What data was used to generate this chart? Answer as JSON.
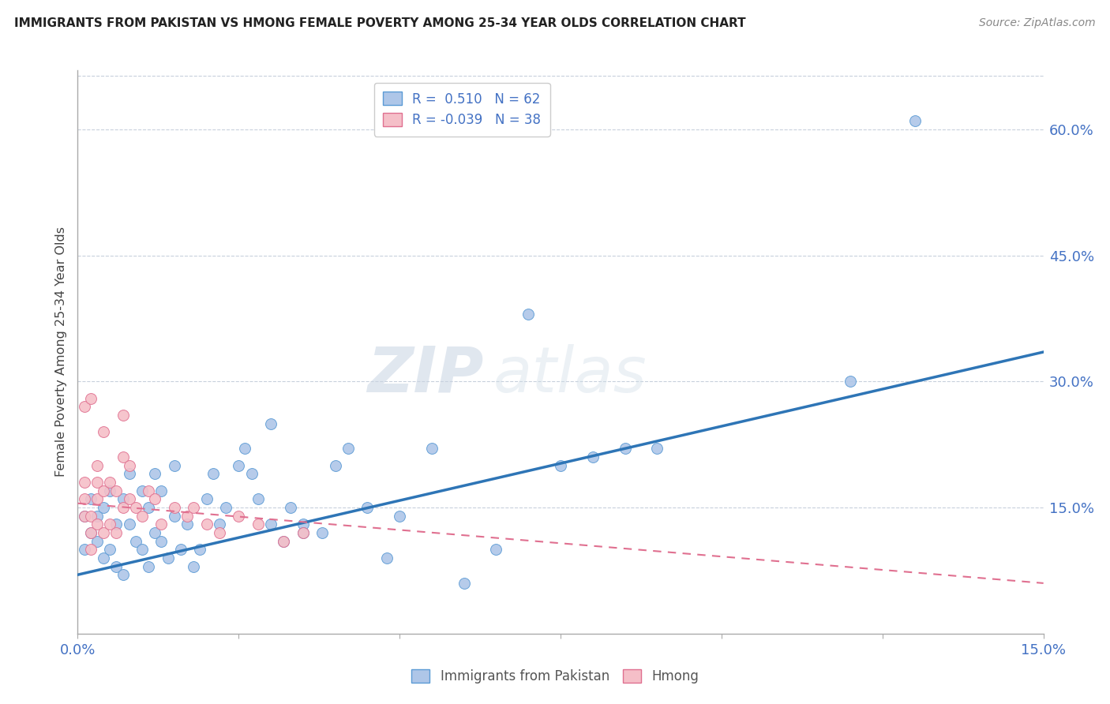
{
  "title": "IMMIGRANTS FROM PAKISTAN VS HMONG FEMALE POVERTY AMONG 25-34 YEAR OLDS CORRELATION CHART",
  "source": "Source: ZipAtlas.com",
  "ylabel": "Female Poverty Among 25-34 Year Olds",
  "xlim": [
    0.0,
    0.15
  ],
  "ylim": [
    0.0,
    0.67
  ],
  "xticks": [
    0.0,
    0.025,
    0.05,
    0.075,
    0.1,
    0.125,
    0.15
  ],
  "yticks_right": [
    0.15,
    0.3,
    0.45,
    0.6
  ],
  "yticklabels_right": [
    "15.0%",
    "30.0%",
    "45.0%",
    "60.0%"
  ],
  "blue_color": "#aec6e8",
  "blue_edge_color": "#5b9bd5",
  "blue_line_color": "#2e75b6",
  "pink_color": "#f5bfc8",
  "pink_edge_color": "#e07090",
  "pink_line_color": "#e07090",
  "legend_R1": "0.510",
  "legend_N1": "62",
  "legend_R2": "-0.039",
  "legend_N2": "38",
  "watermark": "ZIPatlas",
  "blue_line_x0": 0.0,
  "blue_line_y0": 0.07,
  "blue_line_x1": 0.15,
  "blue_line_y1": 0.335,
  "pink_line_x0": 0.0,
  "pink_line_y0": 0.155,
  "pink_line_x1": 0.15,
  "pink_line_y1": 0.06,
  "blue_scatter_x": [
    0.001,
    0.001,
    0.002,
    0.002,
    0.003,
    0.003,
    0.004,
    0.004,
    0.005,
    0.005,
    0.006,
    0.006,
    0.007,
    0.007,
    0.008,
    0.008,
    0.009,
    0.01,
    0.01,
    0.011,
    0.011,
    0.012,
    0.012,
    0.013,
    0.013,
    0.014,
    0.015,
    0.015,
    0.016,
    0.017,
    0.018,
    0.019,
    0.02,
    0.021,
    0.022,
    0.023,
    0.025,
    0.026,
    0.027,
    0.028,
    0.03,
    0.03,
    0.032,
    0.033,
    0.035,
    0.035,
    0.038,
    0.04,
    0.042,
    0.045,
    0.048,
    0.05,
    0.055,
    0.06,
    0.065,
    0.07,
    0.075,
    0.08,
    0.085,
    0.09,
    0.12,
    0.13
  ],
  "blue_scatter_y": [
    0.1,
    0.14,
    0.12,
    0.16,
    0.11,
    0.14,
    0.09,
    0.15,
    0.1,
    0.17,
    0.08,
    0.13,
    0.07,
    0.16,
    0.13,
    0.19,
    0.11,
    0.1,
    0.17,
    0.08,
    0.15,
    0.12,
    0.19,
    0.11,
    0.17,
    0.09,
    0.14,
    0.2,
    0.1,
    0.13,
    0.08,
    0.1,
    0.16,
    0.19,
    0.13,
    0.15,
    0.2,
    0.22,
    0.19,
    0.16,
    0.13,
    0.25,
    0.11,
    0.15,
    0.13,
    0.12,
    0.12,
    0.2,
    0.22,
    0.15,
    0.09,
    0.14,
    0.22,
    0.06,
    0.1,
    0.38,
    0.2,
    0.21,
    0.22,
    0.22,
    0.3,
    0.61
  ],
  "pink_scatter_x": [
    0.001,
    0.001,
    0.001,
    0.001,
    0.002,
    0.002,
    0.002,
    0.002,
    0.003,
    0.003,
    0.003,
    0.003,
    0.004,
    0.004,
    0.004,
    0.005,
    0.005,
    0.006,
    0.006,
    0.007,
    0.007,
    0.007,
    0.008,
    0.008,
    0.009,
    0.01,
    0.011,
    0.012,
    0.013,
    0.015,
    0.017,
    0.018,
    0.02,
    0.022,
    0.025,
    0.028,
    0.032,
    0.035
  ],
  "pink_scatter_y": [
    0.14,
    0.16,
    0.18,
    0.27,
    0.1,
    0.12,
    0.14,
    0.28,
    0.13,
    0.16,
    0.18,
    0.2,
    0.12,
    0.17,
    0.24,
    0.13,
    0.18,
    0.12,
    0.17,
    0.15,
    0.21,
    0.26,
    0.16,
    0.2,
    0.15,
    0.14,
    0.17,
    0.16,
    0.13,
    0.15,
    0.14,
    0.15,
    0.13,
    0.12,
    0.14,
    0.13,
    0.11,
    0.12
  ]
}
